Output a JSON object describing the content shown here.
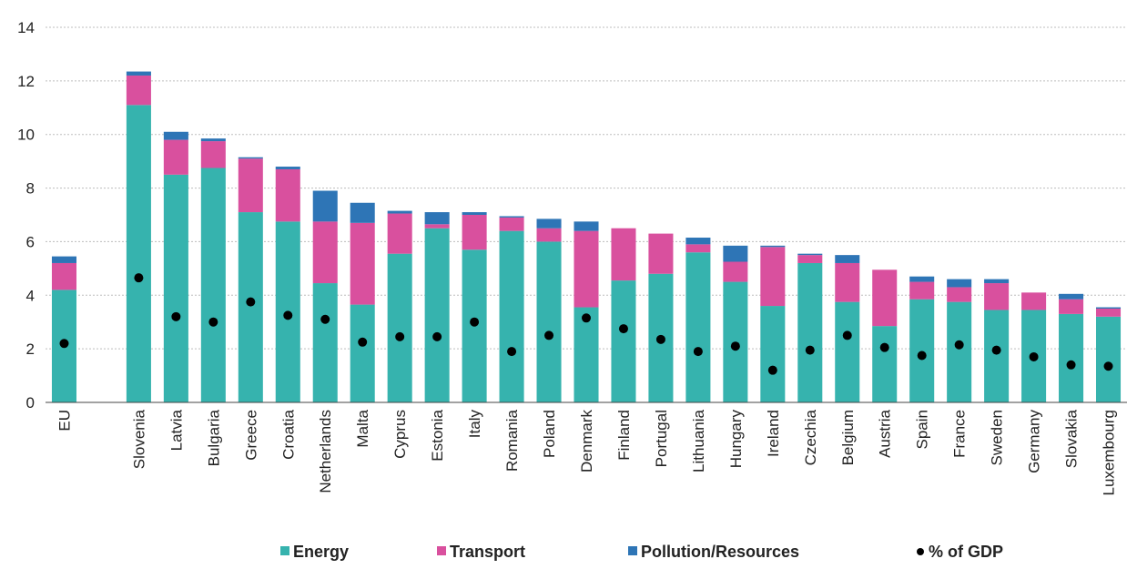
{
  "chart_data": {
    "type": "bar",
    "stacked": true,
    "categories": [
      "EU",
      "",
      "Slovenia",
      "Latvia",
      "Bulgaria",
      "Greece",
      "Croatia",
      "Netherlands",
      "Malta",
      "Cyprus",
      "Estonia",
      "Italy",
      "Romania",
      "Poland",
      "Denmark",
      "Finland",
      "Portugal",
      "Lithuania",
      "Hungary",
      "Ireland",
      "Czechia",
      "Belgium",
      "Austria",
      "Spain",
      "France",
      "Sweden",
      "Germany",
      "Slovakia",
      "Luxembourg"
    ],
    "series": [
      {
        "name": "Energy",
        "color": "#36b3ae",
        "values": [
          4.2,
          null,
          11.1,
          8.5,
          8.75,
          7.1,
          6.75,
          4.45,
          3.65,
          5.55,
          6.5,
          5.7,
          6.4,
          6.0,
          3.55,
          4.55,
          4.8,
          5.6,
          4.5,
          3.6,
          5.2,
          3.75,
          2.85,
          3.85,
          3.75,
          3.45,
          3.45,
          3.3,
          3.2
        ]
      },
      {
        "name": "Transport",
        "color": "#d9509e",
        "values": [
          1.0,
          null,
          1.1,
          1.3,
          1.0,
          2.0,
          1.95,
          2.3,
          3.05,
          1.5,
          0.15,
          1.3,
          0.5,
          0.5,
          2.85,
          1.95,
          1.5,
          0.3,
          0.75,
          2.2,
          0.3,
          1.45,
          2.1,
          0.65,
          0.55,
          1.0,
          0.65,
          0.55,
          0.3
        ]
      },
      {
        "name": "Pollution/Resources",
        "color": "#2e75b6",
        "values": [
          0.25,
          null,
          0.15,
          0.3,
          0.1,
          0.05,
          0.1,
          1.15,
          0.75,
          0.1,
          0.45,
          0.1,
          0.05,
          0.35,
          0.35,
          0.0,
          0.0,
          0.25,
          0.6,
          0.05,
          0.05,
          0.3,
          0.0,
          0.2,
          0.3,
          0.15,
          0.0,
          0.2,
          0.05
        ]
      }
    ],
    "markers": {
      "name": "% of GDP",
      "color": "#000000",
      "values": [
        2.2,
        null,
        4.65,
        3.2,
        3.0,
        3.75,
        3.25,
        3.1,
        2.25,
        2.45,
        2.45,
        3.0,
        1.9,
        2.5,
        3.15,
        2.75,
        2.35,
        1.9,
        2.1,
        1.2,
        1.95,
        2.5,
        2.05,
        1.75,
        2.15,
        1.95,
        1.7,
        1.4,
        1.35
      ]
    },
    "ylim": [
      0,
      14
    ],
    "yticks": [
      "0",
      "2",
      "4",
      "6",
      "8",
      "10",
      "12",
      "14"
    ],
    "title": "",
    "xlabel": "",
    "ylabel": "",
    "grid": true,
    "legend_position": "bottom"
  }
}
